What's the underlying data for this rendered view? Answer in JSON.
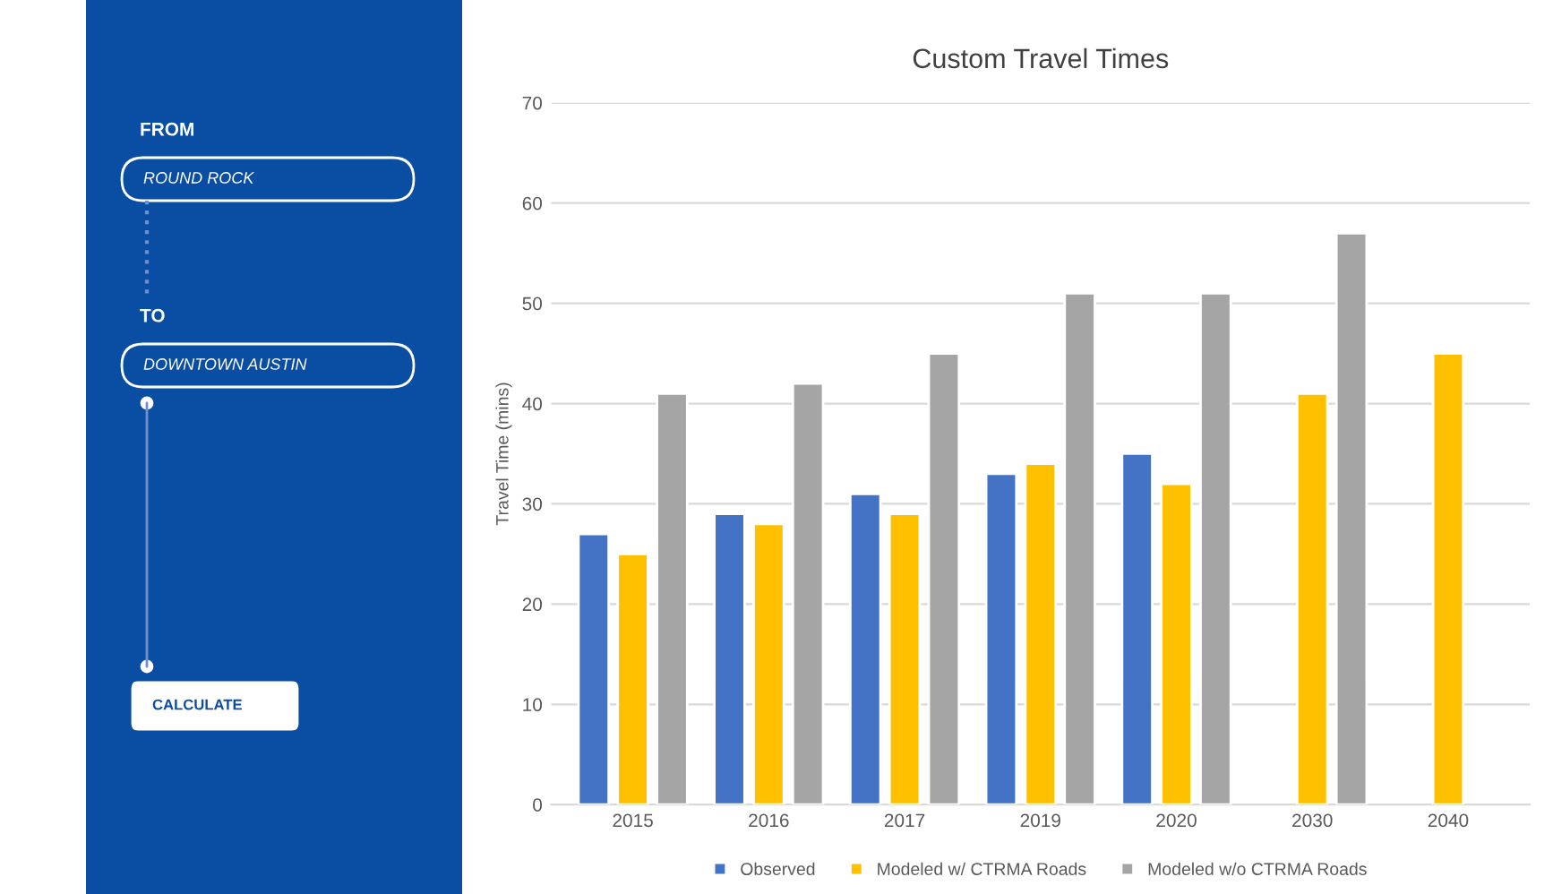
{
  "chart_data": [
    {
      "type": "other",
      "annotations": [
        "FROM",
        "ROUND ROCK",
        "TO",
        "DOWNTOWN AUSTIN",
        "CALCULATE"
      ]
    },
    {
      "type": "bar",
      "title": "Custom Travel Times",
      "ylabel": "Travel Time (mins)",
      "categories": [
        "2015",
        "2016",
        "2017",
        "2019",
        "2020",
        "2030",
        "2040"
      ],
      "series": [
        {
          "name": "Observed",
          "color": "#4472c4",
          "values": [
            27,
            29,
            31,
            33,
            35,
            null,
            null
          ]
        },
        {
          "name": "Modeled w/ CTRMA Roads",
          "color": "#ffc000",
          "values": [
            25,
            28,
            29,
            34,
            32,
            41,
            45
          ]
        },
        {
          "name": "Modeled w/o CTRMA Roads",
          "color": "#a5a5a5",
          "values": [
            41,
            42,
            45,
            51,
            51,
            57,
            null
          ]
        }
      ],
      "ylim": [
        0,
        70
      ],
      "yticks": [
        0,
        10,
        20,
        30,
        40,
        50,
        60,
        70
      ],
      "grid": "y",
      "legend": "bottom"
    }
  ]
}
